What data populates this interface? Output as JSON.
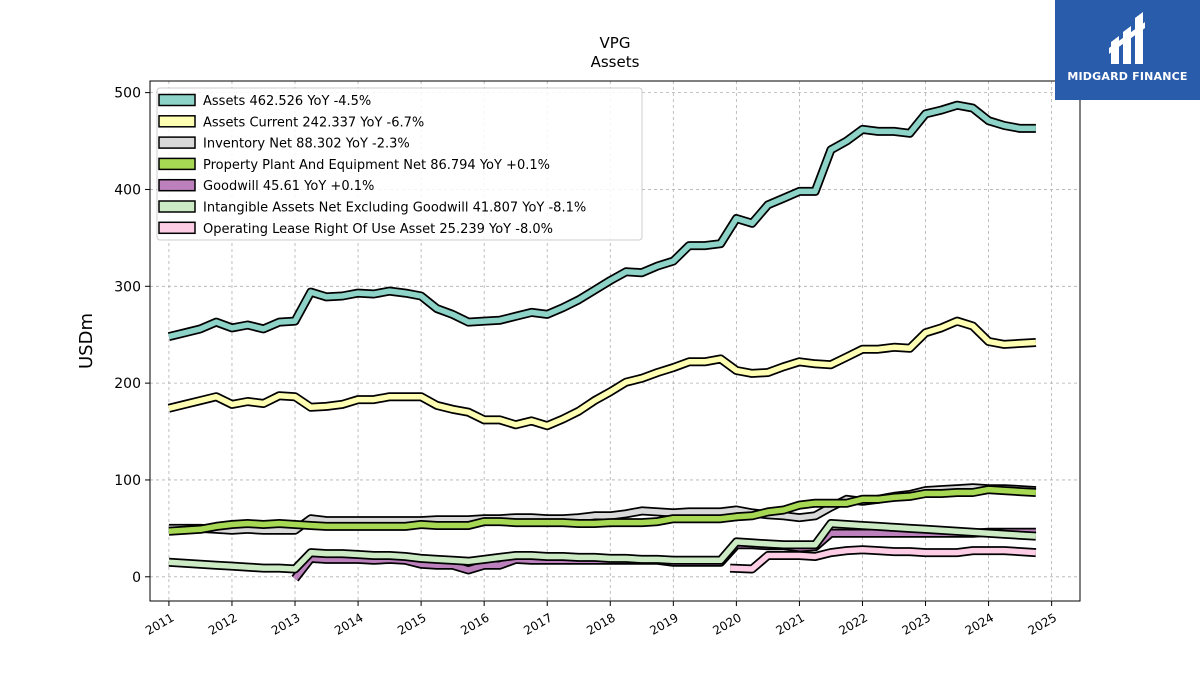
{
  "logo": {
    "text": "MIDGARD FINANCE",
    "color": "#2a5cac"
  },
  "chart_data": {
    "type": "line",
    "title": "VPG",
    "subtitle": "Assets",
    "ylabel": "USDm",
    "xlabel": "",
    "ylim": [
      -25,
      512
    ],
    "xlim": [
      2010.7,
      2025.45
    ],
    "grid": true,
    "legend_position": "top-left",
    "yticks": [
      0,
      100,
      200,
      300,
      400,
      500
    ],
    "xticks": [
      "2011",
      "2012",
      "2013",
      "2014",
      "2015",
      "2016",
      "2017",
      "2018",
      "2019",
      "2020",
      "2021",
      "2022",
      "2023",
      "2024",
      "2025"
    ],
    "series": [
      {
        "name": "Assets",
        "legend": "Assets  462.526 YoY -4.5%",
        "color": "#8dd3c7",
        "x": [
          2011.0,
          2011.25,
          2011.5,
          2011.75,
          2012.0,
          2012.25,
          2012.5,
          2012.75,
          2013.0,
          2013.25,
          2013.5,
          2013.75,
          2014.0,
          2014.25,
          2014.5,
          2014.75,
          2015.0,
          2015.25,
          2015.5,
          2015.75,
          2016.0,
          2016.25,
          2016.5,
          2016.75,
          2017.0,
          2017.25,
          2017.5,
          2017.75,
          2018.0,
          2018.25,
          2018.5,
          2018.75,
          2019.0,
          2019.25,
          2019.5,
          2019.75,
          2020.0,
          2020.25,
          2020.5,
          2020.75,
          2021.0,
          2021.25,
          2021.5,
          2021.75,
          2022.0,
          2022.25,
          2022.5,
          2022.75,
          2023.0,
          2023.25,
          2023.5,
          2023.75,
          2024.0,
          2024.25,
          2024.5,
          2024.75
        ],
        "values": [
          248,
          252,
          256,
          263,
          257,
          260,
          256,
          263,
          264,
          294,
          289,
          290,
          293,
          292,
          295,
          293,
          290,
          277,
          271,
          263,
          264,
          265,
          269,
          273,
          271,
          278,
          286,
          296,
          306,
          315,
          314,
          321,
          326,
          342,
          342,
          344,
          370,
          365,
          384,
          391,
          398,
          398,
          441,
          450,
          462,
          460,
          460,
          458,
          478,
          482,
          487,
          484,
          471,
          466,
          463,
          463
        ]
      },
      {
        "name": "Assets Current",
        "legend": "Assets Current  242.337 YoY -6.7%",
        "color": "#ffffb3",
        "x": [
          2011.0,
          2011.25,
          2011.5,
          2011.75,
          2012.0,
          2012.25,
          2012.5,
          2012.75,
          2013.0,
          2013.25,
          2013.5,
          2013.75,
          2014.0,
          2014.25,
          2014.5,
          2014.75,
          2015.0,
          2015.25,
          2015.5,
          2015.75,
          2016.0,
          2016.25,
          2016.5,
          2016.75,
          2017.0,
          2017.25,
          2017.5,
          2017.75,
          2018.0,
          2018.25,
          2018.5,
          2018.75,
          2019.0,
          2019.25,
          2019.5,
          2019.75,
          2020.0,
          2020.25,
          2020.5,
          2020.75,
          2021.0,
          2021.25,
          2021.5,
          2021.75,
          2022.0,
          2022.25,
          2022.5,
          2022.75,
          2023.0,
          2023.25,
          2023.5,
          2023.75,
          2024.0,
          2024.25,
          2024.5,
          2024.75
        ],
        "values": [
          174,
          178,
          182,
          186,
          178,
          181,
          179,
          187,
          186,
          175,
          176,
          178,
          183,
          183,
          186,
          186,
          186,
          177,
          173,
          170,
          162,
          162,
          157,
          161,
          156,
          163,
          171,
          182,
          191,
          201,
          205,
          211,
          216,
          222,
          222,
          225,
          213,
          210,
          211,
          217,
          222,
          220,
          219,
          227,
          235,
          235,
          237,
          236,
          252,
          257,
          264,
          259,
          243,
          240,
          241,
          242
        ]
      },
      {
        "name": "Inventory Net",
        "legend": "Inventory Net  88.302 YoY -2.3%",
        "color": "#d9d9d9",
        "x": [
          2011.0,
          2011.25,
          2011.5,
          2011.75,
          2012.0,
          2012.25,
          2012.5,
          2012.75,
          2013.0,
          2013.25,
          2013.5,
          2013.75,
          2014.0,
          2014.25,
          2014.5,
          2014.75,
          2015.0,
          2015.25,
          2015.5,
          2015.75,
          2016.0,
          2016.25,
          2016.5,
          2016.75,
          2017.0,
          2017.25,
          2017.5,
          2017.75,
          2018.0,
          2018.25,
          2018.5,
          2018.75,
          2019.0,
          2019.25,
          2019.5,
          2019.75,
          2020.0,
          2020.25,
          2020.5,
          2020.75,
          2021.0,
          2021.25,
          2021.5,
          2021.75,
          2022.0,
          2022.25,
          2022.5,
          2022.75,
          2023.0,
          2023.25,
          2023.5,
          2023.75,
          2024.0,
          2024.25,
          2024.5,
          2024.75
        ],
        "values": [
          50,
          50,
          50,
          49,
          48,
          49,
          48,
          48,
          48,
          60,
          58,
          58,
          58,
          58,
          58,
          58,
          58,
          59,
          59,
          59,
          60,
          60,
          61,
          61,
          60,
          60,
          61,
          63,
          63,
          65,
          68,
          67,
          66,
          67,
          67,
          67,
          69,
          66,
          64,
          63,
          61,
          63,
          72,
          80,
          78,
          80,
          83,
          85,
          89,
          90,
          91,
          92,
          91,
          91,
          90,
          89
        ]
      },
      {
        "name": "Property Plant And Equipment Net",
        "legend": "Property Plant And Equipment Net  86.794 YoY +0.1%",
        "color": "#a6d854",
        "x": [
          2011.0,
          2011.25,
          2011.5,
          2011.75,
          2012.0,
          2012.25,
          2012.5,
          2012.75,
          2013.0,
          2013.25,
          2013.5,
          2013.75,
          2014.0,
          2014.25,
          2014.5,
          2014.75,
          2015.0,
          2015.25,
          2015.5,
          2015.75,
          2016.0,
          2016.25,
          2016.5,
          2016.75,
          2017.0,
          2017.25,
          2017.5,
          2017.75,
          2018.0,
          2018.25,
          2018.5,
          2018.75,
          2019.0,
          2019.25,
          2019.5,
          2019.75,
          2020.0,
          2020.25,
          2020.5,
          2020.75,
          2021.0,
          2021.25,
          2021.5,
          2021.75,
          2022.0,
          2022.25,
          2022.5,
          2022.75,
          2023.0,
          2023.25,
          2023.5,
          2023.75,
          2024.0,
          2024.25,
          2024.5,
          2024.75
        ],
        "values": [
          47,
          48,
          49,
          52,
          54,
          55,
          54,
          55,
          54,
          53,
          52,
          52,
          52,
          52,
          52,
          52,
          54,
          53,
          53,
          53,
          57,
          57,
          56,
          56,
          56,
          56,
          55,
          55,
          56,
          56,
          56,
          57,
          60,
          60,
          60,
          60,
          62,
          63,
          67,
          69,
          74,
          76,
          76,
          76,
          80,
          80,
          82,
          83,
          86,
          86,
          87,
          87,
          90,
          89,
          88,
          87
        ]
      },
      {
        "name": "Goodwill",
        "legend": "Goodwill  45.61 YoY +0.1%",
        "color": "#bc80bd",
        "x": [
          2013.0,
          2013.25,
          2013.5,
          2013.75,
          2014.0,
          2014.25,
          2014.5,
          2014.75,
          2015.0,
          2015.25,
          2015.5,
          2015.75,
          2016.0,
          2016.25,
          2016.5,
          2016.75,
          2017.0,
          2017.25,
          2017.5,
          2017.75,
          2018.0,
          2018.25,
          2018.5,
          2018.75,
          2019.0,
          2019.25,
          2019.5,
          2019.75,
          2020.0,
          2020.25,
          2020.5,
          2020.75,
          2021.0,
          2021.25,
          2021.5,
          2021.75,
          2022.0,
          2022.25,
          2022.5,
          2022.75,
          2023.0,
          2023.25,
          2023.5,
          2023.75,
          2024.0,
          2024.25,
          2024.5,
          2024.75
        ],
        "values": [
          -2,
          19,
          18,
          18,
          18,
          17,
          18,
          17,
          13,
          12,
          12,
          7,
          12,
          12,
          18,
          17,
          17,
          17,
          17,
          17,
          17,
          17,
          17,
          17,
          15,
          15,
          15,
          15,
          33,
          33,
          32,
          32,
          30,
          31,
          45,
          45,
          45,
          45,
          45,
          45,
          45,
          45,
          45,
          45,
          46,
          46,
          46,
          46
        ]
      },
      {
        "name": "Intangible Assets Net Excluding Goodwill",
        "legend": "Intangible Assets Net Excluding Goodwill  41.807 YoY -8.1%",
        "color": "#ccebc5",
        "x": [
          2011.0,
          2011.25,
          2011.5,
          2011.75,
          2012.0,
          2012.25,
          2012.5,
          2012.75,
          2013.0,
          2013.25,
          2013.5,
          2013.75,
          2014.0,
          2014.25,
          2014.5,
          2014.75,
          2015.0,
          2015.25,
          2015.5,
          2015.75,
          2016.0,
          2016.25,
          2016.5,
          2016.75,
          2017.0,
          2017.25,
          2017.5,
          2017.75,
          2018.0,
          2018.25,
          2018.5,
          2018.75,
          2019.0,
          2019.25,
          2019.5,
          2019.75,
          2020.0,
          2020.25,
          2020.5,
          2020.75,
          2021.0,
          2021.25,
          2021.5,
          2021.75,
          2022.0,
          2022.25,
          2022.5,
          2022.75,
          2023.0,
          2023.25,
          2023.5,
          2023.75,
          2024.0,
          2024.25,
          2024.5,
          2024.75
        ],
        "values": [
          15,
          14,
          13,
          12,
          11,
          10,
          9,
          9,
          8,
          25,
          24,
          24,
          23,
          22,
          22,
          21,
          19,
          18,
          17,
          16,
          18,
          20,
          22,
          22,
          21,
          21,
          20,
          20,
          19,
          19,
          18,
          18,
          17,
          17,
          17,
          17,
          36,
          35,
          34,
          33,
          33,
          33,
          55,
          54,
          53,
          52,
          51,
          50,
          49,
          48,
          47,
          46,
          45,
          44,
          43,
          42
        ]
      },
      {
        "name": "Operating Lease Right Of Use Asset",
        "legend": "Operating Lease Right Of Use Asset  25.239 YoY -8.0%",
        "color": "#fccde5",
        "x": [
          2019.9,
          2020.25,
          2020.5,
          2020.75,
          2021.0,
          2021.25,
          2021.5,
          2021.75,
          2022.0,
          2022.25,
          2022.5,
          2022.75,
          2023.0,
          2023.25,
          2023.5,
          2023.75,
          2024.0,
          2024.25,
          2024.5,
          2024.75
        ],
        "values": [
          9,
          8,
          22,
          22,
          22,
          21,
          25,
          27,
          28,
          27,
          26,
          26,
          25,
          25,
          25,
          27,
          27,
          27,
          26,
          25
        ]
      }
    ]
  }
}
